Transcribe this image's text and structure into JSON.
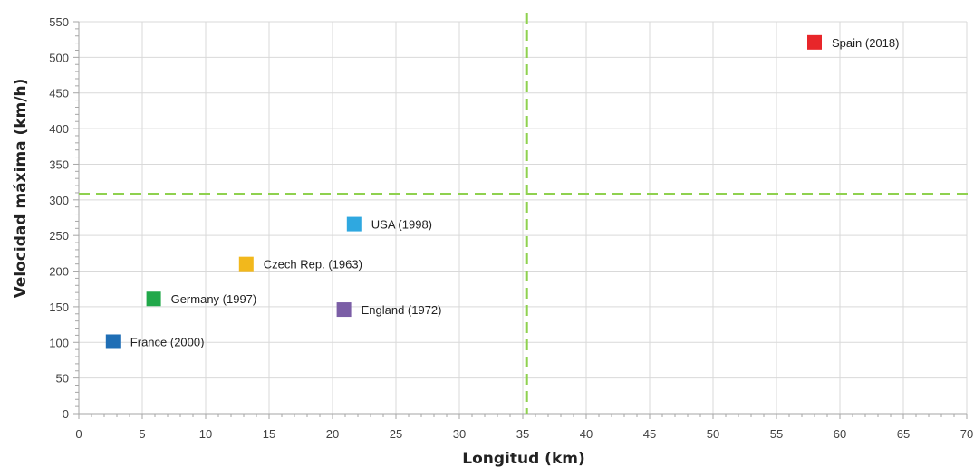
{
  "chart_data": {
    "type": "scatter",
    "title": "",
    "xlabel": "Longitud (km)",
    "ylabel": "Velocidad máxima (km/h)",
    "xlim": [
      0,
      70
    ],
    "ylim": [
      0,
      550
    ],
    "x_ticks": [
      0,
      5,
      10,
      15,
      20,
      25,
      30,
      35,
      40,
      45,
      50,
      55,
      60,
      65,
      70
    ],
    "y_ticks": [
      0,
      50,
      100,
      150,
      200,
      250,
      300,
      350,
      400,
      450,
      500,
      550
    ],
    "grid": true,
    "legend": "none",
    "points": [
      {
        "label": "France (2000)",
        "x": 2.7,
        "y": 101,
        "color": "#1f6eb5"
      },
      {
        "label": "Germany (1997)",
        "x": 5.9,
        "y": 161,
        "color": "#21a84a"
      },
      {
        "label": "Czech Rep. (1963)",
        "x": 13.2,
        "y": 210,
        "color": "#f2b81c"
      },
      {
        "label": "England (1972)",
        "x": 20.9,
        "y": 146,
        "color": "#7b5ea6"
      },
      {
        "label": "USA (1998)",
        "x": 21.7,
        "y": 266,
        "color": "#2fa8e0"
      },
      {
        "label": "Spain (2018)",
        "x": 58.0,
        "y": 521,
        "color": "#e8262a"
      }
    ],
    "reference_lines": {
      "color": "#8fd14f",
      "vertical_x": 35.3,
      "horizontal_y": 308
    }
  }
}
